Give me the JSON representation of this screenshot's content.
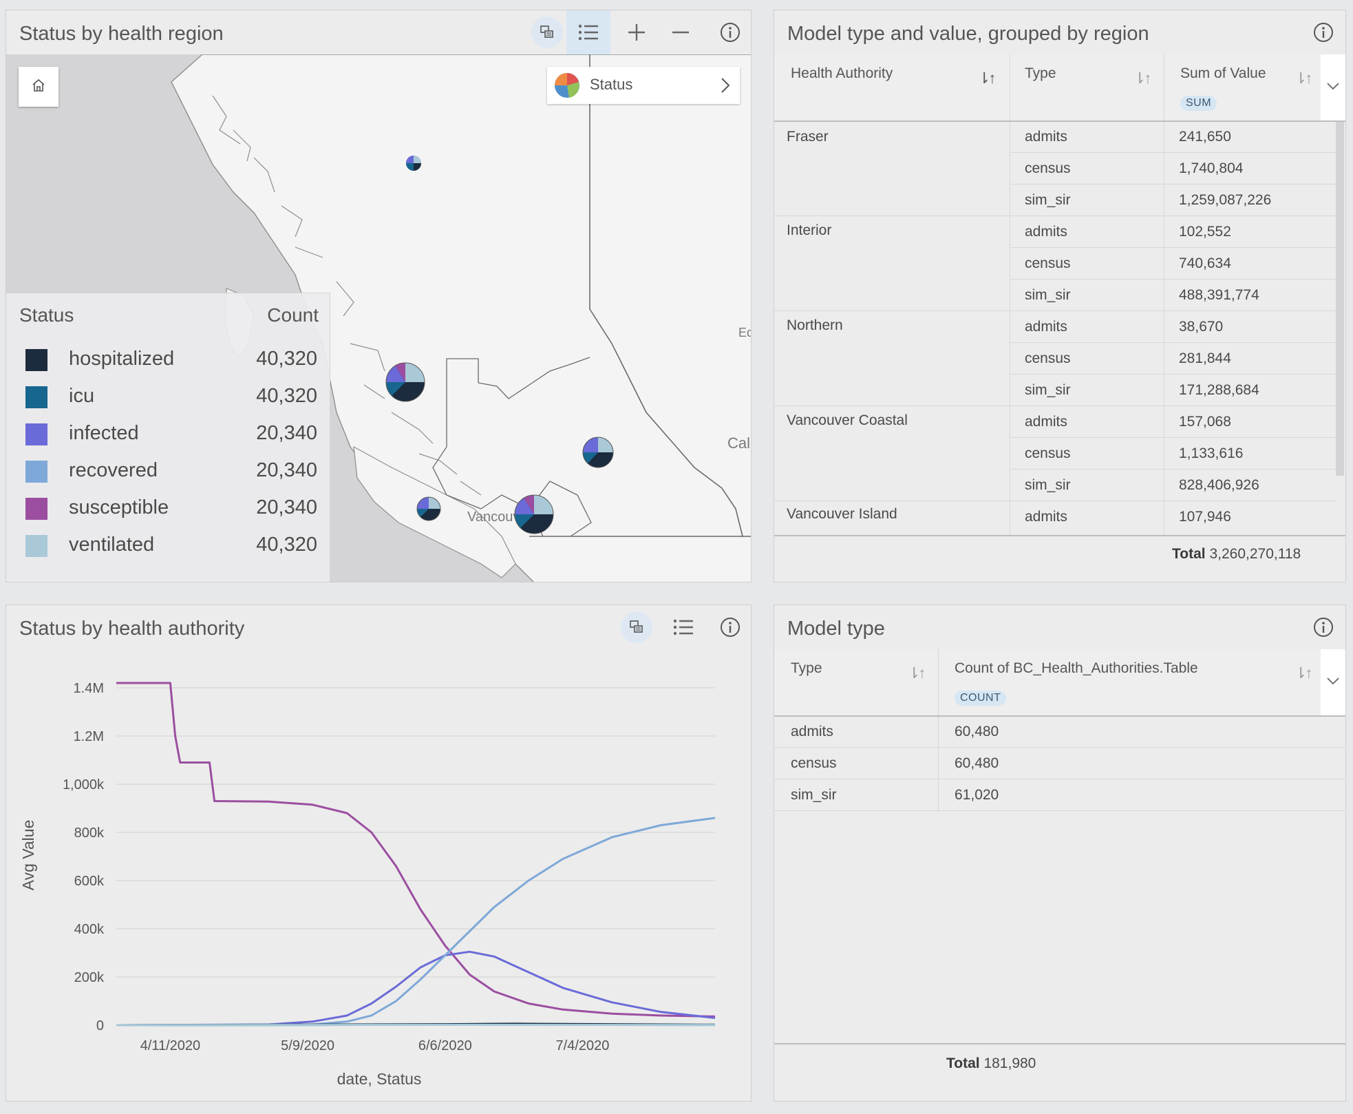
{
  "map_card": {
    "title": "Status by health region",
    "tools": [
      "layer-list-icon",
      "legend-icon",
      "zoom-in-icon",
      "zoom-out-icon",
      "info-icon"
    ],
    "home_icon": "home-icon",
    "layer_selector": {
      "label": "Status"
    },
    "place_labels": {
      "vancouver": "Vancouver",
      "edmonton_partial": "Ed",
      "calgary_partial": "Cal"
    },
    "legend": {
      "header_label": "Status",
      "header_value": "Count",
      "items": [
        {
          "label": "hospitalized",
          "count": "40,320",
          "color": "#1c2b3e"
        },
        {
          "label": "icu",
          "count": "40,320",
          "color": "#17668f"
        },
        {
          "label": "infected",
          "count": "20,340",
          "color": "#6a6ad8"
        },
        {
          "label": "recovered",
          "count": "20,340",
          "color": "#7ea8d8"
        },
        {
          "label": "susceptible",
          "count": "20,340",
          "color": "#9b4ea0"
        },
        {
          "label": "ventilated",
          "count": "40,320",
          "color": "#a9c9d8"
        }
      ]
    }
  },
  "table_card": {
    "title": "Model type and value, grouped by region",
    "columns": [
      "Health Authority",
      "Type",
      "Sum of Value"
    ],
    "agg_badge": "SUM",
    "groups": [
      {
        "name": "Fraser",
        "rows": [
          {
            "type": "admits",
            "value": "241,650"
          },
          {
            "type": "census",
            "value": "1,740,804"
          },
          {
            "type": "sim_sir",
            "value": "1,259,087,226"
          }
        ]
      },
      {
        "name": "Interior",
        "rows": [
          {
            "type": "admits",
            "value": "102,552"
          },
          {
            "type": "census",
            "value": "740,634"
          },
          {
            "type": "sim_sir",
            "value": "488,391,774"
          }
        ]
      },
      {
        "name": "Northern",
        "rows": [
          {
            "type": "admits",
            "value": "38,670"
          },
          {
            "type": "census",
            "value": "281,844"
          },
          {
            "type": "sim_sir",
            "value": "171,288,684"
          }
        ]
      },
      {
        "name": "Vancouver Coastal",
        "rows": [
          {
            "type": "admits",
            "value": "157,068"
          },
          {
            "type": "census",
            "value": "1,133,616"
          },
          {
            "type": "sim_sir",
            "value": "828,406,926"
          }
        ]
      },
      {
        "name": "Vancouver Island",
        "rows": [
          {
            "type": "admits",
            "value": "107,946"
          }
        ]
      }
    ],
    "total_label": "Total",
    "total_value": "3,260,270,118"
  },
  "chart_card": {
    "title": "Status by health authority",
    "tools": [
      "layer-list-icon",
      "legend-icon",
      "info-icon"
    ]
  },
  "chart_data": {
    "type": "line",
    "title": "",
    "xlabel": "date, Status",
    "ylabel": "Avg Value",
    "x_tick_labels": [
      "4/11/2020",
      "5/9/2020",
      "6/6/2020",
      "7/4/2020"
    ],
    "y_tick_labels": [
      "0",
      "200k",
      "400k",
      "600k",
      "800k",
      "1,000k",
      "1.2M",
      "1.4M"
    ],
    "ylim": [
      0,
      1400000
    ],
    "x_domain": [
      "2020-03-31",
      "2020-07-31"
    ],
    "grid": true,
    "series": [
      {
        "status": "susceptible",
        "color": "#9b4ea0",
        "points": [
          [
            "2020-03-31",
            1420000
          ],
          [
            "2020-04-11",
            1420000
          ],
          [
            "2020-04-12",
            1200000
          ],
          [
            "2020-04-13",
            1090000
          ],
          [
            "2020-04-19",
            1090000
          ],
          [
            "2020-04-20",
            930000
          ],
          [
            "2020-05-01",
            928000
          ],
          [
            "2020-05-10",
            915000
          ],
          [
            "2020-05-17",
            880000
          ],
          [
            "2020-05-22",
            800000
          ],
          [
            "2020-05-27",
            660000
          ],
          [
            "2020-06-01",
            480000
          ],
          [
            "2020-06-06",
            330000
          ],
          [
            "2020-06-11",
            210000
          ],
          [
            "2020-06-16",
            140000
          ],
          [
            "2020-06-23",
            90000
          ],
          [
            "2020-06-30",
            65000
          ],
          [
            "2020-07-10",
            48000
          ],
          [
            "2020-07-20",
            40000
          ],
          [
            "2020-07-31",
            36000
          ]
        ]
      },
      {
        "status": "infected",
        "color": "#6a6ad8",
        "points": [
          [
            "2020-03-31",
            0
          ],
          [
            "2020-05-01",
            3000
          ],
          [
            "2020-05-10",
            15000
          ],
          [
            "2020-05-17",
            40000
          ],
          [
            "2020-05-22",
            90000
          ],
          [
            "2020-05-27",
            160000
          ],
          [
            "2020-06-01",
            240000
          ],
          [
            "2020-06-06",
            290000
          ],
          [
            "2020-06-11",
            305000
          ],
          [
            "2020-06-16",
            285000
          ],
          [
            "2020-06-23",
            220000
          ],
          [
            "2020-06-30",
            155000
          ],
          [
            "2020-07-10",
            95000
          ],
          [
            "2020-07-20",
            55000
          ],
          [
            "2020-07-31",
            30000
          ]
        ]
      },
      {
        "status": "recovered",
        "color": "#7ea8d8",
        "points": [
          [
            "2020-03-31",
            0
          ],
          [
            "2020-05-10",
            3000
          ],
          [
            "2020-05-17",
            15000
          ],
          [
            "2020-05-22",
            40000
          ],
          [
            "2020-05-27",
            100000
          ],
          [
            "2020-06-01",
            190000
          ],
          [
            "2020-06-06",
            290000
          ],
          [
            "2020-06-11",
            390000
          ],
          [
            "2020-06-16",
            490000
          ],
          [
            "2020-06-23",
            600000
          ],
          [
            "2020-06-30",
            690000
          ],
          [
            "2020-07-10",
            780000
          ],
          [
            "2020-07-20",
            830000
          ],
          [
            "2020-07-31",
            860000
          ]
        ]
      },
      {
        "status": "hospitalized",
        "color": "#1c2b3e",
        "points": [
          [
            "2020-03-31",
            0
          ],
          [
            "2020-06-06",
            4000
          ],
          [
            "2020-06-20",
            6000
          ],
          [
            "2020-07-31",
            2000
          ]
        ]
      },
      {
        "status": "icu",
        "color": "#17668f",
        "points": [
          [
            "2020-03-31",
            0
          ],
          [
            "2020-06-10",
            2000
          ],
          [
            "2020-07-31",
            1000
          ]
        ]
      },
      {
        "status": "ventilated",
        "color": "#a9c9d8",
        "points": [
          [
            "2020-03-31",
            0
          ],
          [
            "2020-06-10",
            1500
          ],
          [
            "2020-07-31",
            800
          ]
        ]
      }
    ]
  },
  "count_card": {
    "title": "Model type",
    "columns": [
      "Type",
      "Count of BC_Health_Authorities.Table"
    ],
    "agg_badge": "COUNT",
    "rows": [
      {
        "type": "admits",
        "count": "60,480"
      },
      {
        "type": "census",
        "count": "60,480"
      },
      {
        "type": "sim_sir",
        "count": "61,020"
      }
    ],
    "total_label": "Total",
    "total_value": "181,980"
  }
}
